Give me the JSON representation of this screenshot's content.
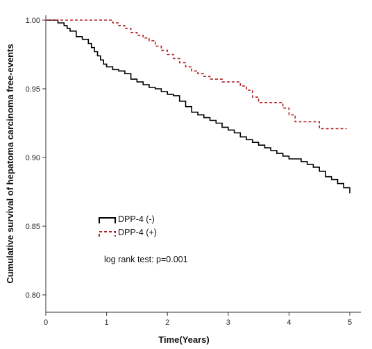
{
  "chart_data": {
    "type": "line",
    "title": "",
    "xlabel": "Time(Years)",
    "ylabel": "Cumulative survival of hepatoma carcinoma free-events",
    "xlim": [
      0,
      5
    ],
    "ylim": [
      0.8,
      1.0
    ],
    "x_ticks": [
      "0",
      "1",
      "2",
      "3",
      "4",
      "5"
    ],
    "y_ticks": [
      "0.80",
      "0.85",
      "0.90",
      "0.95",
      "1.00"
    ],
    "grid": false,
    "legend_position": "center-left",
    "annotation": "log rank test: p=0.001",
    "series": [
      {
        "name": "DPP-4 (-)",
        "color": "#000000",
        "line_style": "solid",
        "x": [
          0,
          0.2,
          0.3,
          0.35,
          0.4,
          0.5,
          0.6,
          0.7,
          0.75,
          0.8,
          0.85,
          0.9,
          0.95,
          1.0,
          1.1,
          1.2,
          1.3,
          1.4,
          1.5,
          1.6,
          1.7,
          1.8,
          1.9,
          2.0,
          2.1,
          2.2,
          2.3,
          2.4,
          2.5,
          2.6,
          2.7,
          2.8,
          2.9,
          3.0,
          3.1,
          3.2,
          3.3,
          3.4,
          3.5,
          3.6,
          3.7,
          3.8,
          3.9,
          4.0,
          4.1,
          4.2,
          4.3,
          4.4,
          4.5,
          4.6,
          4.7,
          4.8,
          4.9,
          4.95,
          5.0
        ],
        "y": [
          1.0,
          0.998,
          0.996,
          0.994,
          0.992,
          0.988,
          0.986,
          0.983,
          0.98,
          0.977,
          0.974,
          0.971,
          0.968,
          0.966,
          0.964,
          0.963,
          0.961,
          0.957,
          0.955,
          0.953,
          0.951,
          0.95,
          0.948,
          0.946,
          0.945,
          0.941,
          0.937,
          0.933,
          0.931,
          0.929,
          0.927,
          0.925,
          0.922,
          0.92,
          0.918,
          0.915,
          0.913,
          0.911,
          0.909,
          0.907,
          0.905,
          0.903,
          0.901,
          0.899,
          0.899,
          0.897,
          0.895,
          0.893,
          0.89,
          0.886,
          0.884,
          0.881,
          0.878,
          0.878,
          0.874
        ]
      },
      {
        "name": "DPP-4 (+)",
        "color": "#b22222",
        "line_style": "dashed",
        "x": [
          0,
          1.0,
          1.1,
          1.2,
          1.3,
          1.4,
          1.5,
          1.6,
          1.7,
          1.8,
          1.9,
          2.0,
          2.1,
          2.2,
          2.3,
          2.4,
          2.5,
          2.6,
          2.7,
          2.8,
          2.9,
          3.0,
          3.1,
          3.2,
          3.3,
          3.4,
          3.5,
          3.8,
          3.9,
          4.0,
          4.1,
          4.2,
          4.4,
          4.5,
          4.95
        ],
        "y": [
          1.0,
          1.0,
          0.998,
          0.996,
          0.994,
          0.991,
          0.989,
          0.987,
          0.985,
          0.981,
          0.978,
          0.975,
          0.972,
          0.969,
          0.966,
          0.963,
          0.961,
          0.959,
          0.957,
          0.957,
          0.955,
          0.955,
          0.955,
          0.952,
          0.949,
          0.944,
          0.94,
          0.94,
          0.936,
          0.931,
          0.926,
          0.926,
          0.926,
          0.921,
          0.921
        ]
      }
    ]
  }
}
